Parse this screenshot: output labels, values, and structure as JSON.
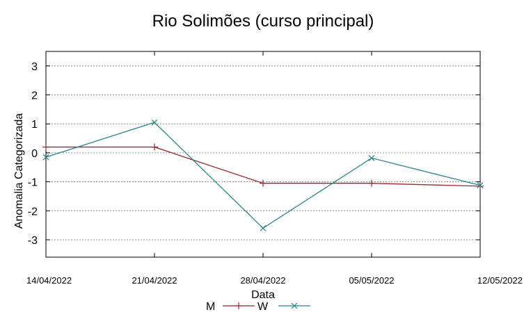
{
  "chart_data": {
    "type": "line",
    "title": "Rio Solimões (curso principal)",
    "xlabel": "Data",
    "ylabel": "Anomalia Categorizada",
    "categories": [
      "14/04/2022",
      "21/04/2022",
      "28/04/2022",
      "05/05/2022",
      "12/05/2022"
    ],
    "y_ticks": [
      "3",
      "2",
      "1",
      "0",
      "-1",
      "-2",
      "-3"
    ],
    "ylim": [
      -3.6,
      3.5
    ],
    "grid": true,
    "legend_position": "bottom-center",
    "series": [
      {
        "name": "M",
        "marker": "+",
        "color": "#a0232b",
        "values": [
          0.2,
          0.2,
          -1.05,
          -1.05,
          -1.15
        ]
      },
      {
        "name": "W",
        "marker": "x",
        "color": "#23868b",
        "values": [
          -0.15,
          1.05,
          -2.6,
          -0.18,
          -1.12
        ]
      }
    ]
  }
}
